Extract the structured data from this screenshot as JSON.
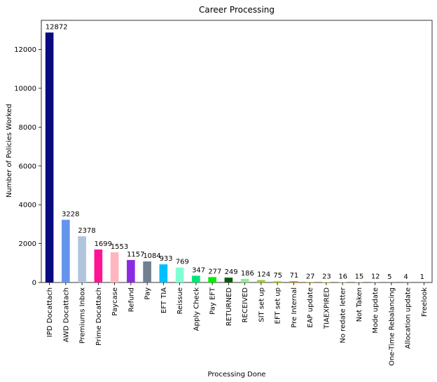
{
  "chart_data": {
    "type": "bar",
    "title": "Career Processing",
    "xlabel": "Processing Done",
    "ylabel": "Number of Policies Worked",
    "ylim": [
      0,
      13500
    ],
    "yticks": [
      0,
      2000,
      4000,
      6000,
      8000,
      10000,
      12000
    ],
    "grid": false,
    "categories": [
      "IPD Docattach",
      "AWD Docattach",
      "Premiums Inbox",
      "Prime Docattach",
      "Paycase",
      "Refund",
      "Pay",
      "EFT TIA",
      "Reissue",
      "Apply Check",
      "Pay EFT",
      "RETURNED",
      "RECEIVED",
      "SIT set up",
      "EFT set up",
      "Pre Internal",
      "EAP update",
      "TIAEXPIRED",
      "No redate letter",
      "Not Taken",
      "Mode update",
      "One-Time Rebalancing",
      "Allocation update",
      "Freelook"
    ],
    "values": [
      12872,
      3228,
      2378,
      1699,
      1553,
      1157,
      1084,
      933,
      769,
      347,
      277,
      249,
      186,
      124,
      75,
      71,
      27,
      23,
      16,
      15,
      12,
      5,
      4,
      1
    ],
    "data_labels": [
      "12872",
      "3228",
      "2378",
      "1699",
      "1553",
      "1157",
      "1084",
      "933",
      "769",
      "347",
      "277",
      "249",
      "186",
      "124",
      "75",
      "71",
      "27",
      "23",
      "16",
      "15",
      "12",
      "5",
      "4",
      "1"
    ],
    "colors": [
      "#0a0a80",
      "#6495ed",
      "#b0c4de",
      "#ff1493",
      "#ffb6c1",
      "#8a2be2",
      "#708090",
      "#00bfff",
      "#7fffd4",
      "#00e676",
      "#00ee00",
      "#0b5a0b",
      "#90ee90",
      "#9acd32",
      "#c8d400",
      "#d2a000",
      "#e6b800",
      "#e8c020",
      "#d8b040",
      "#c8a050",
      "#c09048",
      "#b08040",
      "#a07038",
      "#906030"
    ]
  }
}
